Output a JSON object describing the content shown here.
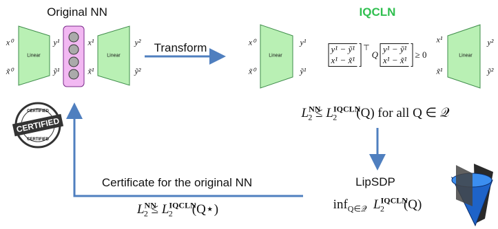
{
  "left_panel": {
    "title": "Original NN",
    "inputs": [
      "x⁰",
      "x̃⁰"
    ],
    "hidden_out": [
      "y¹",
      "ỹ¹"
    ],
    "hidden_in": [
      "x¹",
      "x̃¹"
    ],
    "outputs": [
      "y²",
      "ỹ²"
    ],
    "layers": [
      "Linear",
      "Linear"
    ]
  },
  "transform": "Transform",
  "right_panel": {
    "title": "IQCLN",
    "inputs": [
      "x⁰",
      "x̃⁰"
    ],
    "hidden_out": [
      "y¹",
      "ỹ¹"
    ],
    "hidden_in": [
      "x¹",
      "x̃¹"
    ],
    "outputs": [
      "y²",
      "ỹ²"
    ],
    "layers": [
      "Linear",
      "Linear"
    ],
    "constraint": {
      "rows": [
        "y¹ − ỹ¹",
        "x¹ − x̃¹"
      ],
      "transpose": "⊤",
      "middle": "Q",
      "relation": "≥ 0"
    }
  },
  "bound_all": {
    "lhs": {
      "base": "L",
      "sub": "2",
      "sup": "NN"
    },
    "relation": "≤",
    "rhs": {
      "base": "L",
      "sub": "2",
      "sup": "IQCLN"
    },
    "argument": "(Q)",
    "condition": "for all Q ∈ 𝒬"
  },
  "lipsdp": {
    "label": "LipSDP",
    "operator": "inf",
    "operator_sub": "Q∈𝒬",
    "term": {
      "base": "L",
      "sub": "2",
      "sup": "IQCLN"
    },
    "argument": "(Q)"
  },
  "certificate": {
    "label": "Certificate for the original NN",
    "lhs": {
      "base": "L",
      "sub": "2",
      "sup": "NN"
    },
    "relation": "≤",
    "rhs": {
      "base": "L",
      "sub": "2",
      "sup": "IQCLN"
    },
    "argument": "(Q⋆)"
  },
  "stamp": {
    "top": "CERTIFIED",
    "center": "CERTIFIED",
    "bottom": "CERTIFIED"
  }
}
